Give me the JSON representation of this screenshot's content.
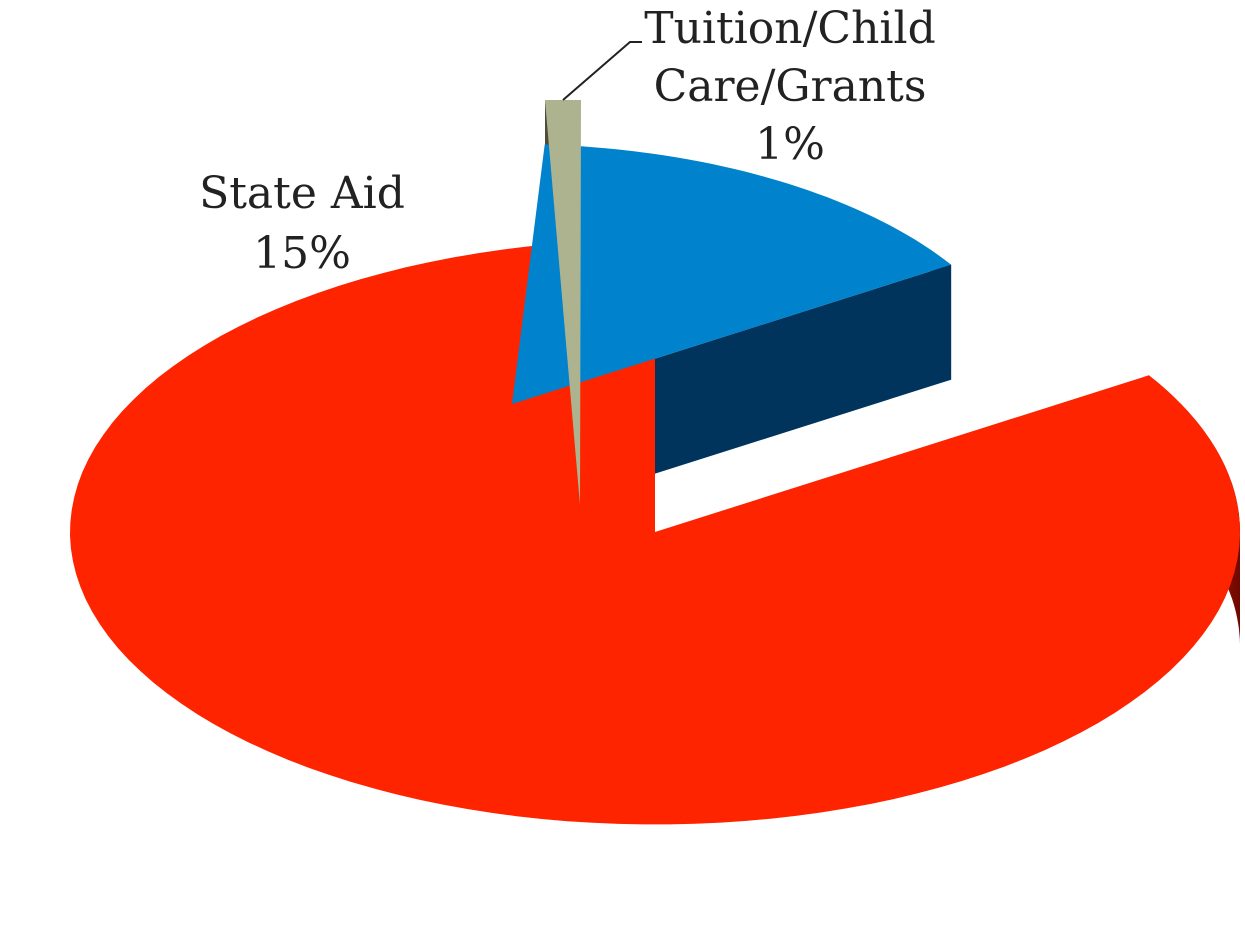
{
  "chart_data": {
    "type": "pie",
    "three_d": true,
    "slices": [
      {
        "label": "",
        "percent_label": "",
        "value": 84,
        "color": "#ff2400",
        "exploded": false
      },
      {
        "label": "State Aid",
        "percent_label": "15%",
        "value": 15,
        "color": "#0083cc",
        "exploded": true
      },
      {
        "label": "Tuition/Child Care/Grants",
        "label_lines": [
          "Tuition/Child",
          "Care/Grants"
        ],
        "percent_label": "1%",
        "value": 1,
        "color": "#adb38f",
        "exploded": true
      }
    ],
    "colors": {
      "red_side_light": "#e02200",
      "red_side_dark": "#6e0800",
      "blue_side": "#00345c",
      "tan_side": "#4d4d36"
    }
  }
}
